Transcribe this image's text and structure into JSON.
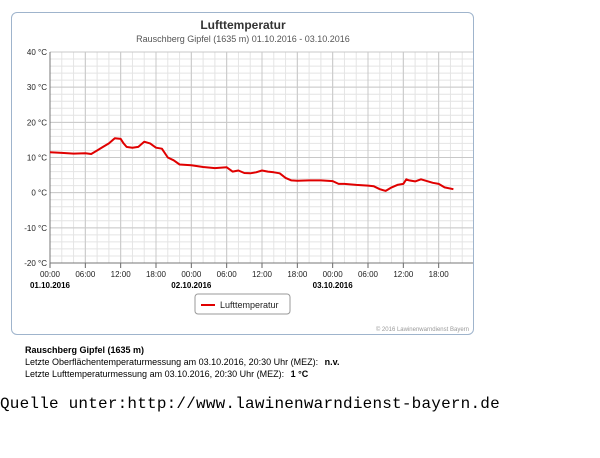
{
  "chart_data": {
    "type": "line",
    "title": "Lufttemperatur",
    "subtitle": "Rauschberg Gipfel (1635 m) 01.10.2016 - 03.10.2016",
    "y_unit": "°C",
    "ylim": [
      -20,
      40
    ],
    "y_ticks": [
      40,
      30,
      20,
      10,
      0,
      -10,
      -20
    ],
    "y_tick_labels": [
      "40 °C",
      "30 °C",
      "20 °C",
      "10 °C",
      "0 °C",
      "-10 °C",
      "-20 °C"
    ],
    "xlim": [
      "2016-10-01 00:00",
      "2016-10-04 00:00"
    ],
    "x_tick_labels": [
      "00:00",
      "06:00",
      "12:00",
      "18:00",
      "00:00",
      "06:00",
      "12:00",
      "18:00",
      "00:00",
      "06:00",
      "12:00",
      "18:00"
    ],
    "x_date_labels": [
      "01.10.2016",
      "02.10.2016",
      "03.10.2016"
    ],
    "grid": true,
    "legend_position": "bottom-center",
    "series": [
      {
        "name": "Lufttemperatur",
        "color": "#e00000",
        "points": [
          [
            "2016-10-01 00:00",
            11.5
          ],
          [
            "2016-10-01 02:00",
            11.3
          ],
          [
            "2016-10-01 04:00",
            11.1
          ],
          [
            "2016-10-01 06:00",
            11.2
          ],
          [
            "2016-10-01 07:00",
            11.0
          ],
          [
            "2016-10-01 08:00",
            12.0
          ],
          [
            "2016-10-01 09:00",
            13.0
          ],
          [
            "2016-10-01 10:00",
            14.0
          ],
          [
            "2016-10-01 11:00",
            15.5
          ],
          [
            "2016-10-01 12:00",
            15.3
          ],
          [
            "2016-10-01 12:30",
            14.0
          ],
          [
            "2016-10-01 13:00",
            13.0
          ],
          [
            "2016-10-01 14:00",
            12.8
          ],
          [
            "2016-10-01 15:00",
            13.0
          ],
          [
            "2016-10-01 16:00",
            14.5
          ],
          [
            "2016-10-01 17:00",
            14.0
          ],
          [
            "2016-10-01 18:00",
            12.8
          ],
          [
            "2016-10-01 19:00",
            12.5
          ],
          [
            "2016-10-01 20:00",
            10.0
          ],
          [
            "2016-10-01 21:00",
            9.2
          ],
          [
            "2016-10-01 22:00",
            8.0
          ],
          [
            "2016-10-02 00:00",
            7.8
          ],
          [
            "2016-10-02 02:00",
            7.3
          ],
          [
            "2016-10-02 04:00",
            7.0
          ],
          [
            "2016-10-02 06:00",
            7.2
          ],
          [
            "2016-10-02 07:00",
            6.0
          ],
          [
            "2016-10-02 08:00",
            6.3
          ],
          [
            "2016-10-02 09:00",
            5.6
          ],
          [
            "2016-10-02 10:00",
            5.5
          ],
          [
            "2016-10-02 11:00",
            5.8
          ],
          [
            "2016-10-02 12:00",
            6.3
          ],
          [
            "2016-10-02 13:00",
            6.0
          ],
          [
            "2016-10-02 14:00",
            5.8
          ],
          [
            "2016-10-02 15:00",
            5.5
          ],
          [
            "2016-10-02 16:00",
            4.2
          ],
          [
            "2016-10-02 17:00",
            3.5
          ],
          [
            "2016-10-02 18:00",
            3.4
          ],
          [
            "2016-10-02 20:00",
            3.5
          ],
          [
            "2016-10-02 22:00",
            3.5
          ],
          [
            "2016-10-03 00:00",
            3.3
          ],
          [
            "2016-10-03 01:00",
            2.5
          ],
          [
            "2016-10-03 02:00",
            2.5
          ],
          [
            "2016-10-03 04:00",
            2.2
          ],
          [
            "2016-10-03 06:00",
            2.0
          ],
          [
            "2016-10-03 07:00",
            1.8
          ],
          [
            "2016-10-03 08:00",
            1.0
          ],
          [
            "2016-10-03 09:00",
            0.5
          ],
          [
            "2016-10-03 10:00",
            1.5
          ],
          [
            "2016-10-03 11:00",
            2.2
          ],
          [
            "2016-10-03 12:00",
            2.5
          ],
          [
            "2016-10-03 12:30",
            3.8
          ],
          [
            "2016-10-03 13:00",
            3.5
          ],
          [
            "2016-10-03 14:00",
            3.2
          ],
          [
            "2016-10-03 15:00",
            3.8
          ],
          [
            "2016-10-03 16:00",
            3.3
          ],
          [
            "2016-10-03 17:00",
            2.8
          ],
          [
            "2016-10-03 18:00",
            2.5
          ],
          [
            "2016-10-03 19:00",
            1.5
          ],
          [
            "2016-10-03 20:30",
            1.0
          ]
        ]
      }
    ],
    "legend_label": "Lufttemperatur",
    "credit": "© 2016 Lawinenwarndienst Bayern"
  },
  "info": {
    "station": "Rauschberg Gipfel (1635 m)",
    "line1_label": "Letzte Oberflächentemperaturmessung am 03.10.2016, 20:30 Uhr (MEZ):",
    "line1_value": "n.v.",
    "line2_label": "Letzte Lufttemperaturmessung am 03.10.2016, 20:30 Uhr (MEZ):",
    "line2_value": "1 °C"
  },
  "source": "Quelle unter:http://www.lawinenwarndienst-bayern.de"
}
